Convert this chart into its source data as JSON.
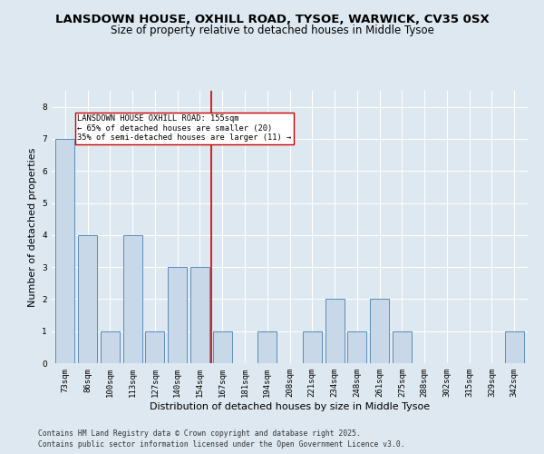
{
  "title1": "LANSDOWN HOUSE, OXHILL ROAD, TYSOE, WARWICK, CV35 0SX",
  "title2": "Size of property relative to detached houses in Middle Tysoe",
  "xlabel": "Distribution of detached houses by size in Middle Tysoe",
  "ylabel": "Number of detached properties",
  "categories": [
    "73sqm",
    "86sqm",
    "100sqm",
    "113sqm",
    "127sqm",
    "140sqm",
    "154sqm",
    "167sqm",
    "181sqm",
    "194sqm",
    "208sqm",
    "221sqm",
    "234sqm",
    "248sqm",
    "261sqm",
    "275sqm",
    "288sqm",
    "302sqm",
    "315sqm",
    "329sqm",
    "342sqm"
  ],
  "values": [
    7,
    4,
    1,
    4,
    1,
    3,
    3,
    1,
    0,
    1,
    0,
    1,
    2,
    1,
    2,
    1,
    0,
    0,
    0,
    0,
    1
  ],
  "bar_color": "#c8d8e8",
  "bar_edge_color": "#5b8db8",
  "reference_line_x": 6.5,
  "annotation_text": "LANSDOWN HOUSE OXHILL ROAD: 155sqm\n← 65% of detached houses are smaller (20)\n35% of semi-detached houses are larger (11) →",
  "annotation_box_color": "#ffffff",
  "annotation_box_edge": "#cc0000",
  "ref_line_color": "#cc0000",
  "ylim": [
    0,
    8.5
  ],
  "yticks": [
    0,
    1,
    2,
    3,
    4,
    5,
    6,
    7,
    8
  ],
  "background_color": "#dde8f0",
  "plot_background": "#dde8f0",
  "footer1": "Contains HM Land Registry data © Crown copyright and database right 2025.",
  "footer2": "Contains public sector information licensed under the Open Government Licence v3.0.",
  "title_fontsize": 9.5,
  "subtitle_fontsize": 8.5,
  "tick_fontsize": 6.5,
  "label_fontsize": 8,
  "footer_fontsize": 5.8
}
